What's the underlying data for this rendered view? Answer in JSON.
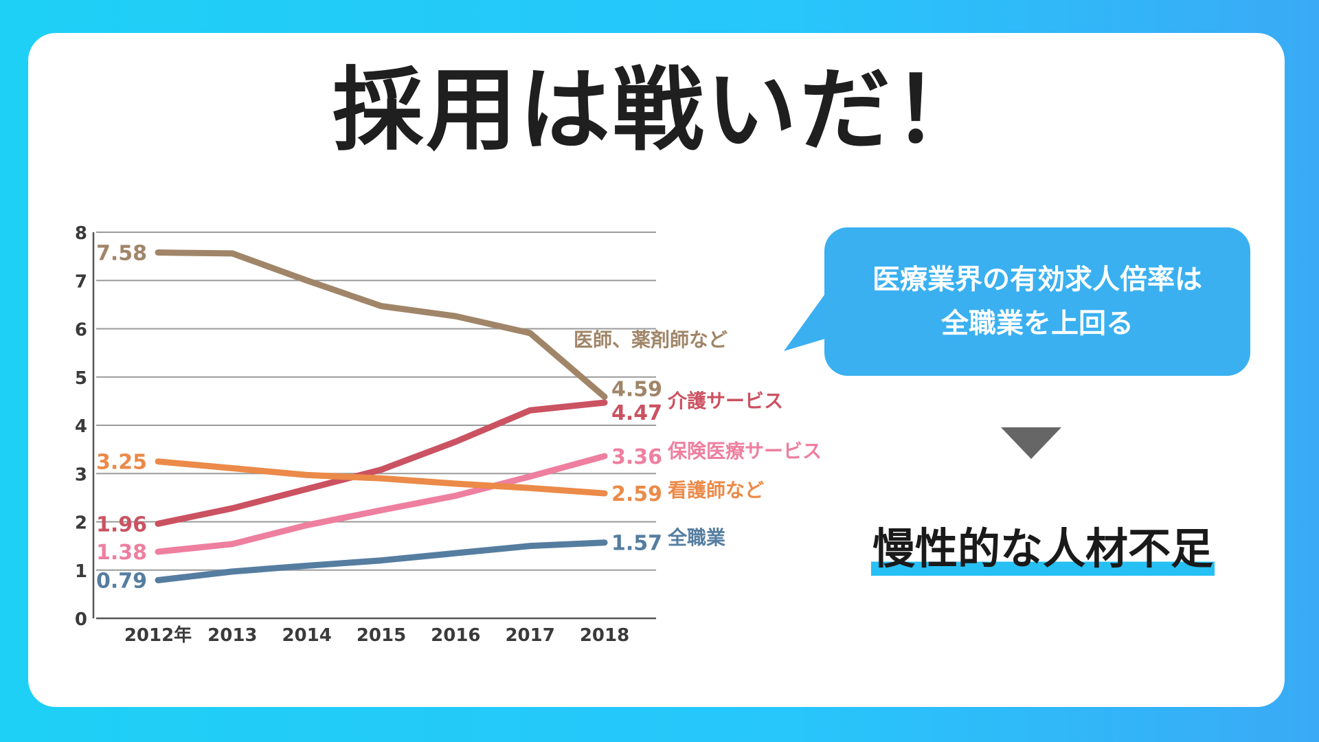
{
  "title": "採用は戦いだ！",
  "bubble": {
    "line1": "医療業界の有効求人倍率は",
    "line2": "全職業を上回る",
    "color": "#3ab0f1"
  },
  "conclusion": "慢性的な人材不足",
  "chart_data": {
    "type": "line",
    "categories": [
      "2012年",
      "2013",
      "2014",
      "2015",
      "2016",
      "2017",
      "2018"
    ],
    "ylim": [
      0,
      8
    ],
    "yticks": [
      "0",
      "1",
      "2",
      "3",
      "4",
      "5",
      "6",
      "7",
      "8"
    ],
    "grid": true,
    "series": [
      {
        "name": "医師、薬剤師など",
        "color": "#a08568",
        "values": [
          7.58,
          7.56,
          7.0,
          6.47,
          6.26,
          5.91,
          4.59
        ],
        "start_label": "7.58",
        "end_label": "4.59"
      },
      {
        "name": "介護サービス",
        "color": "#cb5261",
        "values": [
          1.96,
          2.28,
          2.68,
          3.08,
          3.66,
          4.31,
          4.47
        ],
        "start_label": "1.96",
        "end_label": "4.47"
      },
      {
        "name": "保険医療サービス",
        "color": "#ee7f9f",
        "values": [
          1.38,
          1.54,
          1.93,
          2.24,
          2.54,
          2.94,
          3.36
        ],
        "start_label": "1.38",
        "end_label": "3.36"
      },
      {
        "name": "看護師など",
        "color": "#eb8a49",
        "values": [
          3.25,
          3.11,
          2.97,
          2.9,
          2.79,
          2.7,
          2.59
        ],
        "start_label": "3.25",
        "end_label": "2.59"
      },
      {
        "name": "全職業",
        "color": "#557da0",
        "values": [
          0.79,
          0.97,
          1.09,
          1.2,
          1.35,
          1.5,
          1.57
        ],
        "start_label": "0.79",
        "end_label": "1.57"
      }
    ]
  }
}
